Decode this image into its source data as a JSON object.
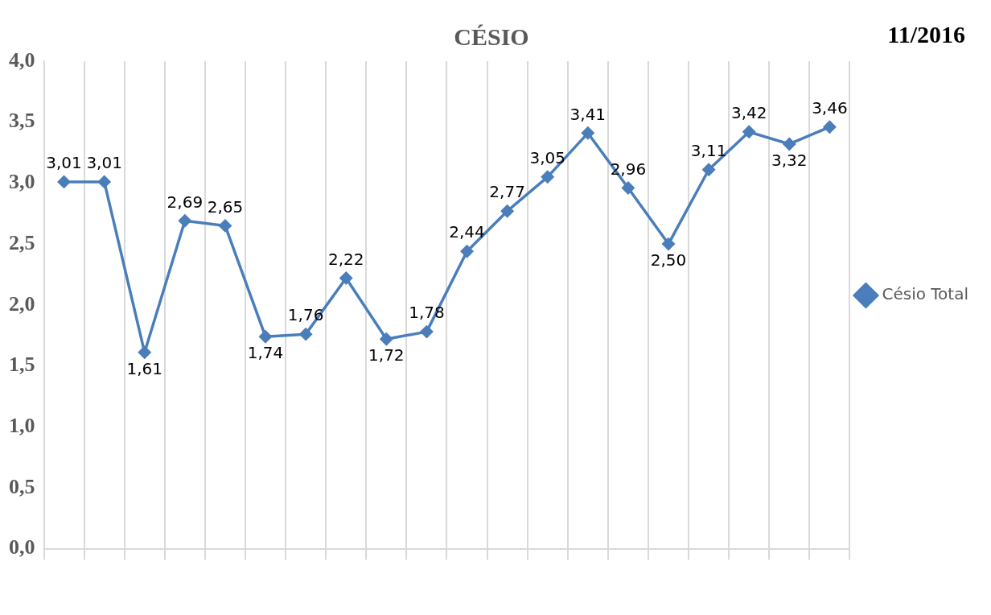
{
  "chart_data": {
    "type": "line",
    "title": "CÉSIO",
    "annotations": [
      "11/2016"
    ],
    "categories": [
      null,
      null,
      null,
      null,
      null,
      null,
      null,
      null,
      null,
      null,
      null,
      null,
      null,
      null,
      null,
      null,
      null,
      null,
      null,
      null
    ],
    "series": [
      {
        "name": "Césio Total",
        "color": "#4a7ebb",
        "values": [
          3.01,
          3.01,
          1.61,
          2.69,
          2.65,
          1.74,
          1.76,
          2.22,
          1.72,
          1.78,
          2.44,
          2.77,
          3.05,
          3.41,
          2.96,
          2.5,
          3.11,
          3.42,
          3.32,
          3.46
        ],
        "value_labels": [
          "3,01",
          "3,01",
          "1,61",
          "2,69",
          "2,65",
          "1,74",
          "1,76",
          "2,22",
          "1,72",
          "1,78",
          "2,44",
          "2,77",
          "3,05",
          "3,41",
          "2,96",
          "2,50",
          "3,11",
          "3,42",
          "3,32",
          "3,46"
        ]
      }
    ],
    "ylim": [
      0,
      4
    ],
    "yticks": [
      {
        "value": 0,
        "label": "0,0"
      },
      {
        "value": 0.5,
        "label": "0,5"
      },
      {
        "value": 1,
        "label": "1,0"
      },
      {
        "value": 1.5,
        "label": "1,5"
      },
      {
        "value": 2,
        "label": "2,0"
      },
      {
        "value": 2.5,
        "label": "2,5"
      },
      {
        "value": 3,
        "label": "3,0"
      },
      {
        "value": 3.5,
        "label": "3,5"
      },
      {
        "value": 4,
        "label": "4,0"
      }
    ],
    "grid": "x",
    "legend": "right",
    "marker": "diamond",
    "line_style": "solid"
  }
}
